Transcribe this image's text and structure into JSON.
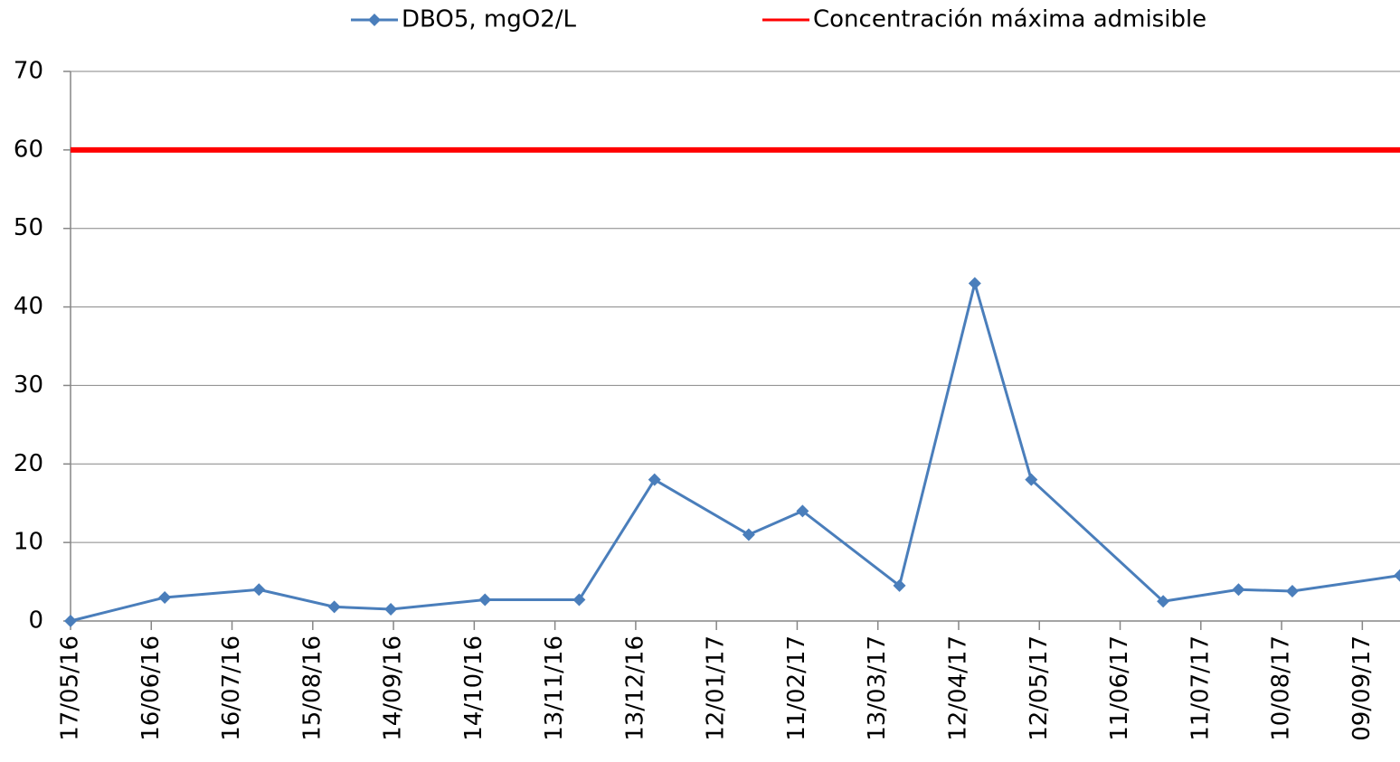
{
  "chart_data": {
    "type": "line",
    "x": [
      "2016-05-17",
      "2016-06-21",
      "2016-07-26",
      "2016-08-23",
      "2016-09-13",
      "2016-10-18",
      "2016-11-22",
      "2016-12-20",
      "2017-01-24",
      "2017-02-13",
      "2017-03-21",
      "2017-04-18",
      "2017-05-09",
      "2017-06-27",
      "2017-07-25",
      "2017-08-14",
      "2017-09-23"
    ],
    "series": [
      {
        "name": "DBO5, mgO2/L",
        "color": "#4a7ebb",
        "marker": "diamond",
        "values": [
          0,
          3,
          4,
          1.8,
          1.5,
          2.7,
          2.7,
          18,
          11,
          14,
          4.5,
          43,
          18,
          2.5,
          4,
          3.8,
          5.8
        ]
      },
      {
        "name": "Concentración máxima admisible",
        "color": "#ff0000",
        "values": [
          60,
          60,
          60,
          60,
          60,
          60,
          60,
          60,
          60,
          60,
          60,
          60,
          60,
          60,
          60,
          60,
          60
        ]
      }
    ],
    "xlim": [
      "2016-05-17",
      "2017-09-23"
    ],
    "xticks": [
      {
        "value": "2016-05-17",
        "label": "17/05/16"
      },
      {
        "value": "2016-06-16",
        "label": "16/06/16"
      },
      {
        "value": "2016-07-16",
        "label": "16/07/16"
      },
      {
        "value": "2016-08-15",
        "label": "15/08/16"
      },
      {
        "value": "2016-09-14",
        "label": "14/09/16"
      },
      {
        "value": "2016-10-14",
        "label": "14/10/16"
      },
      {
        "value": "2016-11-13",
        "label": "13/11/16"
      },
      {
        "value": "2016-12-13",
        "label": "13/12/16"
      },
      {
        "value": "2017-01-12",
        "label": "12/01/17"
      },
      {
        "value": "2017-02-11",
        "label": "11/02/17"
      },
      {
        "value": "2017-03-13",
        "label": "13/03/17"
      },
      {
        "value": "2017-04-12",
        "label": "12/04/17"
      },
      {
        "value": "2017-05-12",
        "label": "12/05/17"
      },
      {
        "value": "2017-06-11",
        "label": "11/06/17"
      },
      {
        "value": "2017-07-11",
        "label": "11/07/17"
      },
      {
        "value": "2017-08-10",
        "label": "10/08/17"
      },
      {
        "value": "2017-09-09",
        "label": "09/09/17"
      }
    ],
    "ylim": [
      0,
      70
    ],
    "yticks": [
      0,
      10,
      20,
      30,
      40,
      50,
      60,
      70
    ],
    "grid": true,
    "legend": "top"
  }
}
